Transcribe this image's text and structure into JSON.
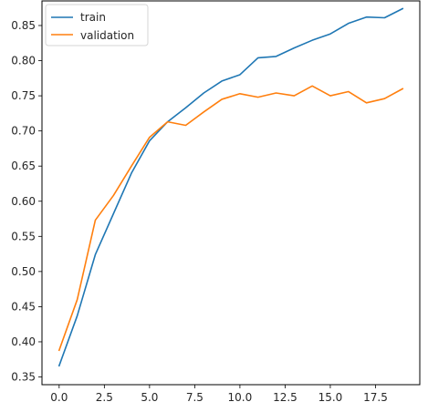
{
  "chart_data": {
    "type": "line",
    "title": "",
    "xlabel": "",
    "ylabel": "",
    "xlim": [
      -0.95,
      19.95
    ],
    "ylim": [
      0.339,
      0.885
    ],
    "xticks": [
      0.0,
      2.5,
      5.0,
      7.5,
      10.0,
      12.5,
      15.0,
      17.5
    ],
    "xtick_labels": [
      "0.0",
      "2.5",
      "5.0",
      "7.5",
      "10.0",
      "12.5",
      "15.0",
      "17.5"
    ],
    "yticks": [
      0.35,
      0.4,
      0.45,
      0.5,
      0.55,
      0.6,
      0.65,
      0.7,
      0.75,
      0.8,
      0.85
    ],
    "ytick_labels": [
      "0.35",
      "0.40",
      "0.45",
      "0.50",
      "0.55",
      "0.60",
      "0.65",
      "0.70",
      "0.75",
      "0.80",
      "0.85"
    ],
    "grid": false,
    "legend_position": "top-left",
    "x": [
      0,
      1,
      2,
      3,
      4,
      5,
      6,
      7,
      8,
      9,
      10,
      11,
      12,
      13,
      14,
      15,
      16,
      17,
      18,
      19
    ],
    "series": [
      {
        "name": "train",
        "color": "#1f77b4",
        "values": [
          0.366,
          0.437,
          0.524,
          0.582,
          0.64,
          0.686,
          0.713,
          0.733,
          0.754,
          0.771,
          0.78,
          0.804,
          0.806,
          0.818,
          0.829,
          0.838,
          0.853,
          0.862,
          0.861,
          0.874
        ]
      },
      {
        "name": "validation",
        "color": "#ff7f0e",
        "values": [
          0.388,
          0.46,
          0.573,
          0.608,
          0.65,
          0.691,
          0.713,
          0.708,
          0.727,
          0.745,
          0.753,
          0.748,
          0.754,
          0.75,
          0.764,
          0.75,
          0.756,
          0.74,
          0.746,
          0.76
        ]
      }
    ]
  }
}
